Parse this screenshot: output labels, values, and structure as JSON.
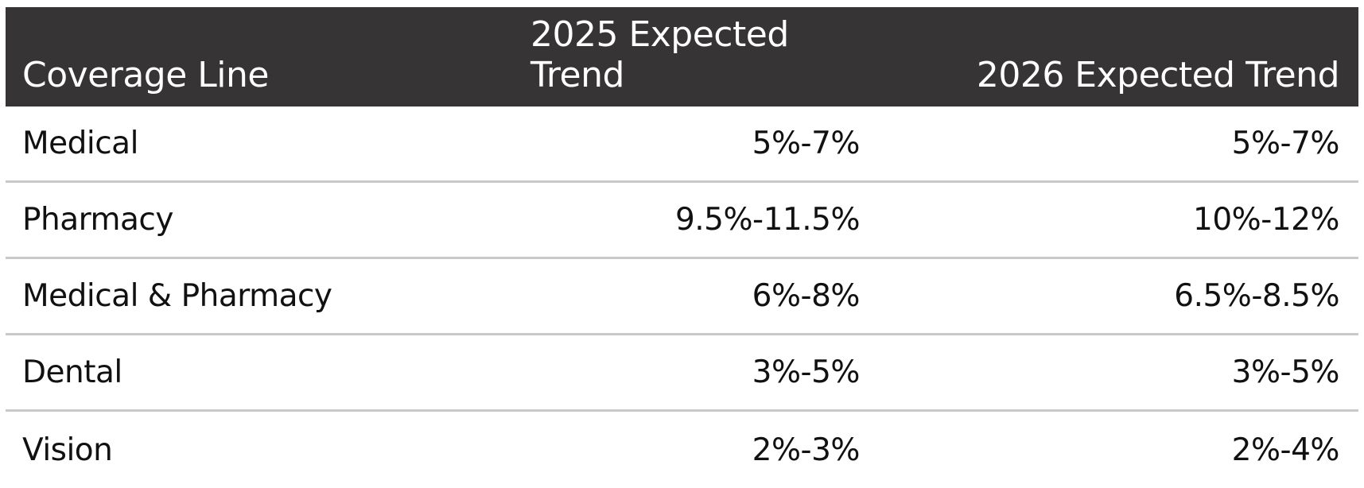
{
  "table": {
    "headers": {
      "coverage_line": "Coverage Line",
      "trend_2025": "2025 Expected Trend",
      "trend_2026": "2026 Expected Trend"
    },
    "rows": [
      {
        "coverage_line": "Medical",
        "trend_2025": "5%-7%",
        "trend_2026": "5%-7%"
      },
      {
        "coverage_line": "Pharmacy",
        "trend_2025": "9.5%-11.5%",
        "trend_2026": "10%-12%"
      },
      {
        "coverage_line": "Medical & Pharmacy",
        "trend_2025": "6%-8%",
        "trend_2026": "6.5%-8.5%"
      },
      {
        "coverage_line": "Dental",
        "trend_2025": "3%-5%",
        "trend_2026": "3%-5%"
      },
      {
        "coverage_line": "Vision",
        "trend_2025": "2%-3%",
        "trend_2026": "2%-4%"
      }
    ]
  },
  "colors": {
    "header_background": "#363435",
    "header_text": "#ffffff",
    "row_divider": "#c9c9c9",
    "body_text": "#111111"
  }
}
